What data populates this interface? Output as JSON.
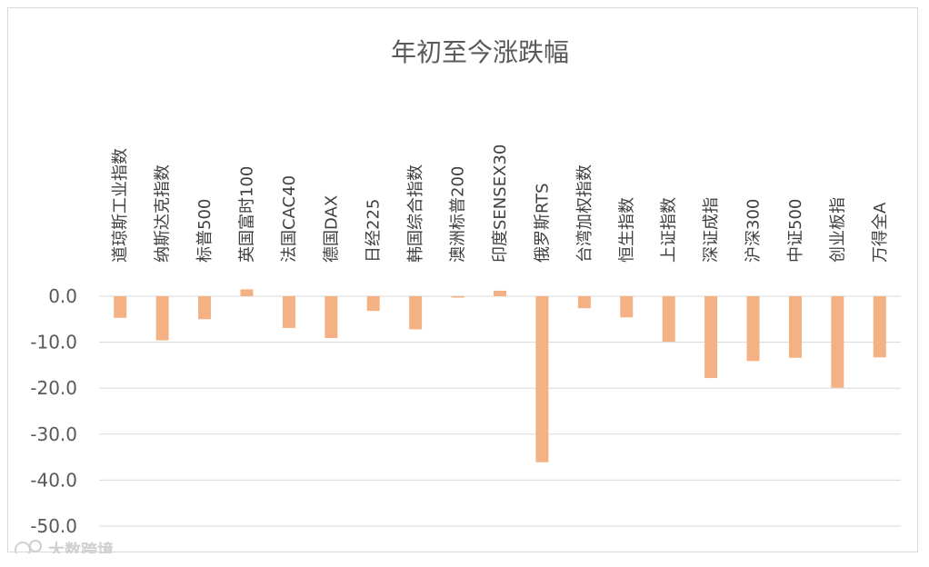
{
  "chart_data": {
    "type": "bar",
    "title": "年初至今涨跌幅",
    "xlabel": "",
    "ylabel": "",
    "ylim": [
      -50,
      0
    ],
    "yticks": [
      0,
      -10,
      -20,
      -30,
      -40,
      -50
    ],
    "ytick_labels": [
      "0.0",
      "-10.0",
      "-20.0",
      "-30.0",
      "-40.0",
      "-50.0"
    ],
    "grid": true,
    "legend": "none",
    "bar_color": "#f4b183",
    "categories": [
      "道琼斯工业指数",
      "纳斯达克指数",
      "标普500",
      "英国富时100",
      "法国CAC40",
      "德国DAX",
      "日经225",
      "韩国综合指数",
      "澳洲标普200",
      "印度SENSEX30",
      "俄罗斯RTS",
      "台湾加权指数",
      "恒生指数",
      "上证指数",
      "深证成指",
      "沪深300",
      "中证500",
      "创业板指",
      "万得全A"
    ],
    "values": [
      -4.7,
      -9.6,
      -5.0,
      1.5,
      -6.9,
      -9.1,
      -3.2,
      -7.2,
      -0.3,
      1.2,
      -36.1,
      -2.6,
      -4.6,
      -9.9,
      -17.8,
      -14.1,
      -13.4,
      -19.9,
      -13.3
    ]
  },
  "watermark": {
    "text": "大数跨境"
  }
}
